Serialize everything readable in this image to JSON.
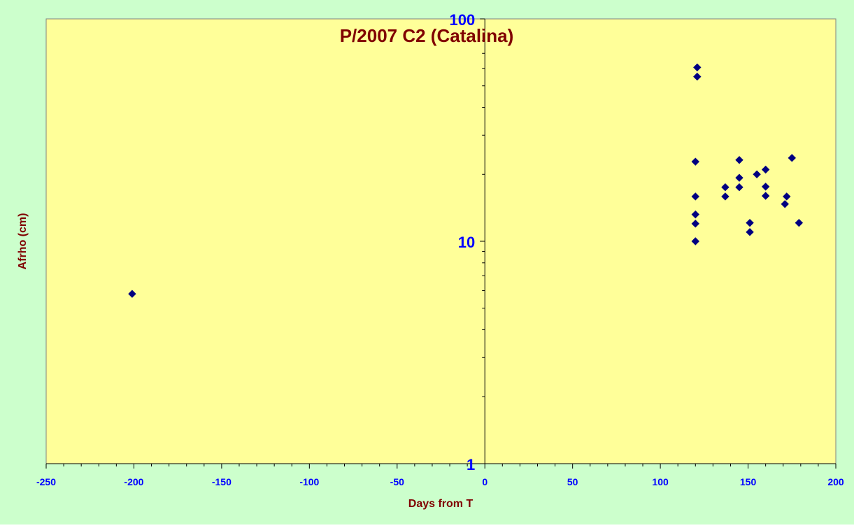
{
  "colors": {
    "background": "#ccffcc",
    "plot_area": "#ffff99",
    "title": "#800000",
    "axis_label": "#800000",
    "tick_label": "#0000ff",
    "marker": "#000080",
    "axis_line": "#000000"
  },
  "chart_data": {
    "type": "scatter",
    "title": "P/2007 C2 (Catalina)",
    "xlabel": "Days from T",
    "ylabel": "Afrho (cm)",
    "xlim": [
      -250,
      200
    ],
    "ylim": [
      1,
      100
    ],
    "y_scale": "log",
    "x_ticks": [
      "-250",
      "-200",
      "-150",
      "-100",
      "-50",
      "0",
      "50",
      "100",
      "150",
      "200"
    ],
    "y_ticks": [
      "1",
      "10",
      "100"
    ],
    "grid": false,
    "legend": "none",
    "marker": "diamond",
    "points": [
      {
        "x": -201,
        "y": 5.8
      },
      {
        "x": 120,
        "y": 10.0
      },
      {
        "x": 120,
        "y": 12.0
      },
      {
        "x": 120,
        "y": 13.2
      },
      {
        "x": 120,
        "y": 15.9
      },
      {
        "x": 120,
        "y": 22.8
      },
      {
        "x": 121,
        "y": 55.0
      },
      {
        "x": 121,
        "y": 60.5
      },
      {
        "x": 137,
        "y": 15.9
      },
      {
        "x": 137,
        "y": 17.5
      },
      {
        "x": 145,
        "y": 17.5
      },
      {
        "x": 145,
        "y": 19.3
      },
      {
        "x": 145,
        "y": 23.2
      },
      {
        "x": 151,
        "y": 11.0
      },
      {
        "x": 151,
        "y": 12.1
      },
      {
        "x": 155,
        "y": 20.0
      },
      {
        "x": 160,
        "y": 16.0
      },
      {
        "x": 160,
        "y": 17.6
      },
      {
        "x": 160,
        "y": 21.0
      },
      {
        "x": 171,
        "y": 14.7
      },
      {
        "x": 172,
        "y": 15.9
      },
      {
        "x": 175,
        "y": 23.7
      },
      {
        "x": 179,
        "y": 12.1
      }
    ]
  }
}
